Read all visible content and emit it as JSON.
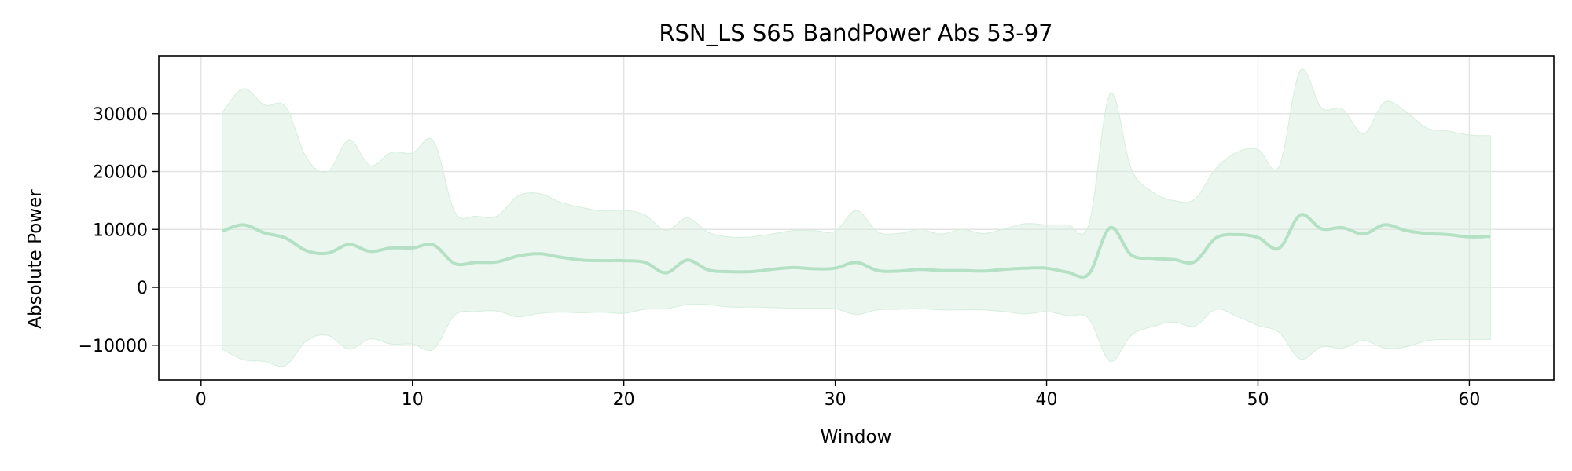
{
  "chart_data": {
    "type": "line",
    "title": "RSN_LS S65 BandPower Abs 53-97",
    "xlabel": "Window",
    "ylabel": "Absolute Power",
    "xlim": [
      -2,
      64
    ],
    "ylim": [
      -16000,
      40000
    ],
    "xticks": [
      0,
      10,
      20,
      30,
      40,
      50,
      60
    ],
    "yticks": [
      -10000,
      0,
      10000,
      20000,
      30000
    ],
    "xtick_labels": [
      "0",
      "10",
      "20",
      "30",
      "40",
      "50",
      "60"
    ],
    "ytick_labels": [
      "−10000",
      "0",
      "10000",
      "20000",
      "30000"
    ],
    "grid": true,
    "line_color": "#b4e0c4",
    "band_color": "#d6eedd",
    "series": [
      {
        "x": [
          1,
          2,
          3,
          4,
          5,
          6,
          7,
          8,
          9,
          10,
          11,
          12,
          13,
          14,
          15,
          16,
          17,
          18,
          19,
          20,
          21,
          22,
          23,
          24,
          25,
          26,
          27,
          28,
          29,
          30,
          31,
          32,
          33,
          34,
          35,
          36,
          37,
          38,
          39,
          40,
          41,
          42,
          43,
          44,
          45,
          46,
          47,
          48,
          49,
          50,
          51,
          52,
          53,
          54,
          55,
          56,
          57,
          58,
          59,
          60,
          61
        ],
        "mean": [
          9700,
          10800,
          9400,
          8500,
          6300,
          5900,
          7400,
          6200,
          6800,
          6800,
          7300,
          4100,
          4300,
          4400,
          5400,
          5800,
          5200,
          4700,
          4600,
          4600,
          4300,
          2500,
          4700,
          3000,
          2700,
          2700,
          3100,
          3400,
          3200,
          3300,
          4300,
          2900,
          2800,
          3100,
          2900,
          2900,
          2800,
          3100,
          3300,
          3300,
          2600,
          2300,
          10300,
          5600,
          5000,
          4800,
          4400,
          8500,
          9100,
          8600,
          6700,
          12500,
          10100,
          10300,
          9200,
          10800,
          9800,
          9300,
          9100,
          8700,
          8800
        ],
        "upper": [
          30200,
          34300,
          31500,
          31200,
          22300,
          20000,
          25500,
          21000,
          23300,
          23200,
          25300,
          13000,
          12300,
          12300,
          15800,
          16200,
          14700,
          13800,
          13200,
          13300,
          12500,
          9800,
          12000,
          9500,
          8700,
          8700,
          9200,
          9800,
          9800,
          9700,
          13300,
          9600,
          9300,
          10000,
          9200,
          10000,
          9300,
          10100,
          11000,
          10800,
          10800,
          10800,
          33500,
          20500,
          16500,
          15000,
          15200,
          20500,
          23300,
          23800,
          20800,
          37500,
          31000,
          30800,
          26500,
          32000,
          30300,
          27500,
          27000,
          26300,
          26200
        ],
        "lower": [
          -10700,
          -12500,
          -12800,
          -13500,
          -9200,
          -8300,
          -10700,
          -8900,
          -9800,
          -9800,
          -10700,
          -4800,
          -4200,
          -4100,
          -5100,
          -4500,
          -4300,
          -4400,
          -4300,
          -4500,
          -3800,
          -3700,
          -3000,
          -3000,
          -3400,
          -3400,
          -3500,
          -3600,
          -3600,
          -3700,
          -4700,
          -3900,
          -3800,
          -3700,
          -3900,
          -3900,
          -3900,
          -4200,
          -4600,
          -4200,
          -4900,
          -5400,
          -12800,
          -8300,
          -6800,
          -6000,
          -6700,
          -3800,
          -5000,
          -6600,
          -7800,
          -12400,
          -10300,
          -10500,
          -9200,
          -10500,
          -10300,
          -9200,
          -9000,
          -9000,
          -9000
        ]
      }
    ]
  }
}
